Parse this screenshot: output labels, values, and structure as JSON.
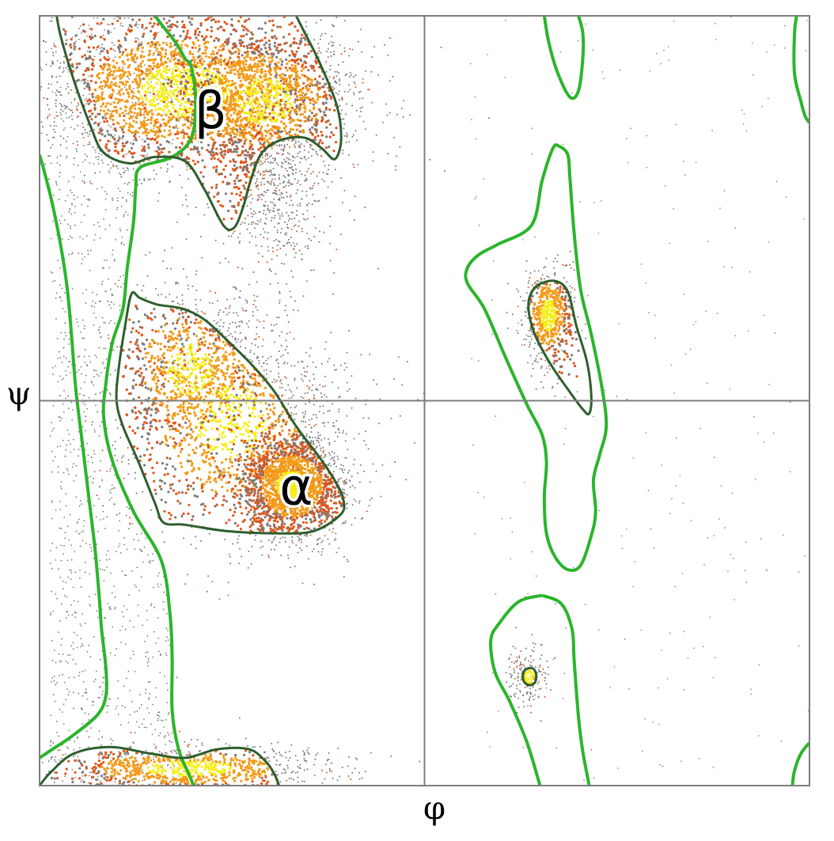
{
  "chart_data": {
    "type": "scatter",
    "title": "",
    "xlabel": "φ",
    "ylabel": "ψ",
    "xlim": [
      -180,
      180
    ],
    "ylim": [
      -180,
      180
    ],
    "grid": false,
    "crosshair_at": [
      0,
      0
    ],
    "colors": {
      "allowed_contour": "#2bb52b",
      "favored_contour": "#2e5e2e",
      "points": "#7a7a7a",
      "density_low": "#e0561a",
      "density_mid": "#f39a18",
      "density_high": "#f6ee1a"
    },
    "region_labels": [
      {
        "text": "β",
        "phi": -100,
        "psi": 134
      },
      {
        "text": "α",
        "phi": -60,
        "psi": -42
      }
    ],
    "favored_regions": [
      {
        "name": "beta",
        "points": [
          [
            -172,
            180
          ],
          [
            -170,
            170
          ],
          [
            -164,
            150
          ],
          [
            -156,
            128
          ],
          [
            -150,
            116
          ],
          [
            -138,
            111
          ],
          [
            -126,
            114
          ],
          [
            -112,
            112
          ],
          [
            -103,
            99
          ],
          [
            -94,
            82
          ],
          [
            -89,
            81
          ],
          [
            -85,
            90
          ],
          [
            -81,
            104
          ],
          [
            -76,
            116
          ],
          [
            -67,
            122
          ],
          [
            -56,
            123
          ],
          [
            -48,
            118
          ],
          [
            -42,
            113
          ],
          [
            -39,
            122
          ],
          [
            -41,
            138
          ],
          [
            -49,
            158
          ],
          [
            -57,
            174
          ],
          [
            -60,
            180
          ]
        ]
      },
      {
        "name": "beta-bottom",
        "points": [
          [
            -180,
            -180
          ],
          [
            -175,
            -174
          ],
          [
            -164,
            -165
          ],
          [
            -147,
            -162
          ],
          [
            -128,
            -165
          ],
          [
            -112,
            -167
          ],
          [
            -97,
            -163
          ],
          [
            -82,
            -163
          ],
          [
            -74,
            -169
          ],
          [
            -70,
            -175
          ],
          [
            -68,
            -180
          ]
        ]
      },
      {
        "name": "alpha",
        "points": [
          [
            -137,
            50
          ],
          [
            -133,
            48
          ],
          [
            -125,
            45
          ],
          [
            -113,
            43
          ],
          [
            -103,
            38
          ],
          [
            -92,
            28
          ],
          [
            -80,
            16
          ],
          [
            -70,
            4
          ],
          [
            -60,
            -12
          ],
          [
            -48,
            -28
          ],
          [
            -41,
            -39
          ],
          [
            -38,
            -46
          ],
          [
            -39,
            -53
          ],
          [
            -52,
            -61
          ],
          [
            -70,
            -62
          ],
          [
            -92,
            -61
          ],
          [
            -112,
            -58
          ],
          [
            -122,
            -57
          ],
          [
            -126,
            -48
          ],
          [
            -134,
            -28
          ],
          [
            -141,
            -12
          ],
          [
            -144,
            0
          ],
          [
            -143,
            15
          ],
          [
            -140,
            35
          ],
          [
            -137,
            50
          ]
        ]
      },
      {
        "name": "left-handed",
        "points": [
          [
            53,
            54
          ],
          [
            61,
            56
          ],
          [
            67,
            51
          ],
          [
            71,
            35
          ],
          [
            76,
            18
          ],
          [
            78,
            2
          ],
          [
            77,
            -6
          ],
          [
            74,
            -4
          ],
          [
            68,
            4
          ],
          [
            59,
            17
          ],
          [
            52,
            30
          ],
          [
            49,
            40
          ],
          [
            49,
            48
          ],
          [
            53,
            54
          ]
        ]
      },
      {
        "name": "small-pocket",
        "points": [
          [
            47,
            -126
          ],
          [
            50,
            -125
          ],
          [
            52,
            -127
          ],
          [
            52,
            -131
          ],
          [
            50,
            -133
          ],
          [
            47,
            -132
          ],
          [
            46,
            -129
          ],
          [
            47,
            -126
          ]
        ]
      }
    ],
    "allowed_regions": [
      {
        "name": "left-main",
        "points": [
          [
            -180,
            115
          ],
          [
            -178,
            108
          ],
          [
            -174,
            92
          ],
          [
            -170,
            72
          ],
          [
            -167,
            52
          ],
          [
            -165,
            30
          ],
          [
            -163,
            5
          ],
          [
            -160,
            -20
          ],
          [
            -157,
            -45
          ],
          [
            -154,
            -70
          ],
          [
            -152,
            -93
          ],
          [
            -151,
            -107
          ],
          [
            -149,
            -125
          ],
          [
            -149,
            -138
          ],
          [
            -153,
            -147
          ],
          [
            -165,
            -157
          ],
          [
            -174,
            -163
          ],
          [
            -180,
            -167
          ]
        ]
      },
      {
        "name": "beta-outer",
        "points": [
          [
            -126,
            180
          ],
          [
            -123,
            176
          ],
          [
            -116,
            167
          ],
          [
            -112,
            160
          ],
          [
            -109,
            156
          ],
          [
            -107,
            140
          ],
          [
            -109,
            123
          ],
          [
            -118,
            114
          ],
          [
            -133,
            109
          ],
          [
            -135,
            100
          ],
          [
            -136,
            84
          ],
          [
            -139,
            62
          ],
          [
            -141,
            43
          ],
          [
            -146,
            27
          ],
          [
            -149,
            8
          ],
          [
            -150,
            -8
          ],
          [
            -146,
            -28
          ],
          [
            -136,
            -52
          ],
          [
            -123,
            -75
          ],
          [
            -119,
            -100
          ],
          [
            -118,
            -121
          ],
          [
            -118,
            -145
          ],
          [
            -115,
            -163
          ],
          [
            -110,
            -175
          ],
          [
            -108,
            -180
          ]
        ]
      },
      {
        "name": "lh-outer",
        "points": [
          [
            60,
            118
          ],
          [
            63,
            119
          ],
          [
            67,
            115
          ],
          [
            68,
            104
          ],
          [
            70,
            78
          ],
          [
            73,
            52
          ],
          [
            78,
            31
          ],
          [
            83,
            6
          ],
          [
            85,
            -12
          ],
          [
            82,
            -25
          ],
          [
            79,
            -37
          ],
          [
            80,
            -52
          ],
          [
            78,
            -63
          ],
          [
            73,
            -77
          ],
          [
            67,
            -79
          ],
          [
            61,
            -73
          ],
          [
            57,
            -62
          ],
          [
            56,
            -45
          ],
          [
            57,
            -29
          ],
          [
            55,
            -16
          ],
          [
            48,
            -2
          ],
          [
            38,
            20
          ],
          [
            28,
            43
          ],
          [
            20,
            55
          ],
          [
            20,
            62
          ],
          [
            25,
            68
          ],
          [
            34,
            73
          ],
          [
            50,
            82
          ],
          [
            55,
            103
          ],
          [
            60,
            118
          ]
        ]
      },
      {
        "name": "top-middle",
        "points": [
          [
            56,
            180
          ],
          [
            58,
            168
          ],
          [
            62,
            154
          ],
          [
            68,
            142
          ],
          [
            72,
            145
          ],
          [
            74,
            160
          ],
          [
            74,
            172
          ],
          [
            72,
            180
          ]
        ]
      },
      {
        "name": "lower-middle",
        "points": [
          [
            55,
            -91
          ],
          [
            64,
            -95
          ],
          [
            69,
            -107
          ],
          [
            70,
            -122
          ],
          [
            72,
            -148
          ],
          [
            74,
            -164
          ],
          [
            77,
            -180
          ]
        ]
      },
      {
        "name": "lower-middle-left",
        "points": [
          [
            55,
            -91
          ],
          [
            44,
            -94
          ],
          [
            35,
            -104
          ],
          [
            31,
            -112
          ],
          [
            33,
            -127
          ],
          [
            40,
            -141
          ],
          [
            48,
            -160
          ],
          [
            54,
            -180
          ]
        ]
      },
      {
        "name": "right-top",
        "points": [
          [
            174,
            180
          ],
          [
            173,
            172
          ],
          [
            173,
            153
          ],
          [
            176,
            140
          ],
          [
            178,
            133
          ],
          [
            180,
            130
          ]
        ]
      },
      {
        "name": "right-bottom",
        "points": [
          [
            180,
            -160
          ],
          [
            176,
            -165
          ],
          [
            173,
            -173
          ],
          [
            172,
            -180
          ]
        ]
      }
    ],
    "density_clusters": [
      {
        "phi": -112,
        "psi": 145,
        "sx": 36,
        "sy": 20,
        "n": 2600
      },
      {
        "phi": -75,
        "psi": 140,
        "sx": 22,
        "sy": 18,
        "n": 1200
      },
      {
        "phi": -70,
        "psi": 95,
        "sx": 12,
        "sy": 18,
        "n": 500
      },
      {
        "phi": -90,
        "psi": -10,
        "sx": 28,
        "sy": 28,
        "n": 1500
      },
      {
        "phi": -62,
        "psi": -40,
        "sx": 12,
        "sy": 12,
        "n": 1800
      },
      {
        "phi": -110,
        "psi": 15,
        "sx": 18,
        "sy": 20,
        "n": 700
      },
      {
        "phi": 58,
        "psi": 40,
        "sx": 6,
        "sy": 12,
        "n": 600
      },
      {
        "phi": 48,
        "psi": -129,
        "sx": 5,
        "sy": 7,
        "n": 180
      },
      {
        "phi": -110,
        "psi": -172,
        "sx": 35,
        "sy": 6,
        "n": 900
      }
    ]
  }
}
